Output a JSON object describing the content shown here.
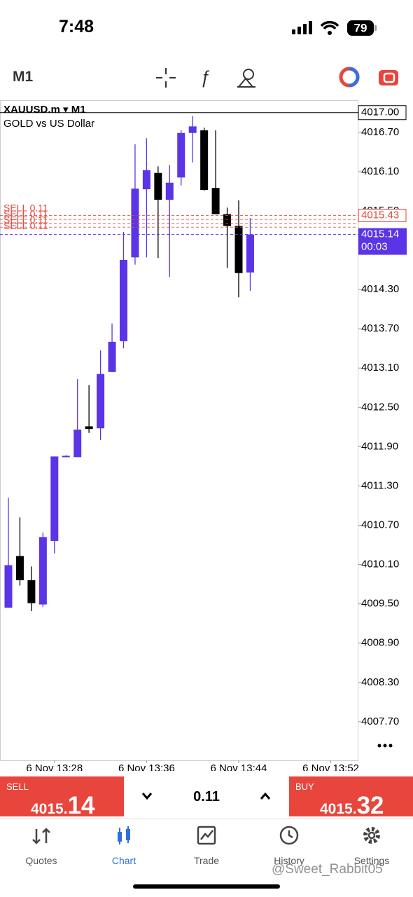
{
  "status_bar": {
    "time": "7:48",
    "battery": "79"
  },
  "toolbar": {
    "timeframe": "M1"
  },
  "chart_data": {
    "type": "candlestick",
    "title": "XAUUSD.m ▾ M1",
    "subtitle": "GOLD vs US Dollar",
    "categories": [
      null,
      null,
      null,
      null,
      "6 Nov 13:28",
      null,
      null,
      null,
      null,
      null,
      null,
      null,
      "6 Nov 13:36",
      null,
      null,
      null,
      null,
      null,
      null,
      null,
      "6 Nov 13:44",
      null,
      null,
      null,
      null,
      null,
      null,
      null,
      "6 Nov 13:52"
    ],
    "open": [
      4009.44,
      4010.23,
      4009.86,
      4009.49,
      4010.46,
      4011.75,
      4011.74,
      4012.21,
      4012.18,
      4013.04,
      4013.51,
      4014.79,
      4015.83,
      4016.08,
      4015.67,
      4016.01,
      4016.69,
      4016.73,
      4015.85,
      4015.45,
      4015.27,
      4014.56,
      null,
      null,
      null,
      null,
      null,
      null,
      null
    ],
    "high": [
      4011.12,
      4010.82,
      4010.07,
      4010.59,
      4011.75,
      4011.77,
      4012.93,
      4012.84,
      4013.37,
      4013.78,
      4015.18,
      4016.52,
      4016.61,
      4016.18,
      4016.2,
      4016.73,
      4016.95,
      4016.77,
      4016.73,
      4015.55,
      4015.66,
      4015.39,
      null,
      null,
      null,
      null,
      null,
      null,
      null
    ],
    "low": [
      4009.44,
      4009.78,
      4009.39,
      4009.45,
      4010.27,
      4011.74,
      4011.74,
      4012.11,
      4012.0,
      4013.04,
      4013.4,
      4014.68,
      4014.79,
      4014.78,
      4014.49,
      4015.89,
      4016.24,
      4015.81,
      4015.45,
      4014.63,
      4014.18,
      4014.28,
      null,
      null,
      null,
      null,
      null,
      null,
      null
    ],
    "close": [
      4010.09,
      4009.86,
      4009.51,
      4010.52,
      4011.75,
      4011.76,
      4012.16,
      4012.17,
      4013.01,
      4013.5,
      4014.75,
      4015.84,
      4016.12,
      4015.67,
      4015.93,
      4016.69,
      4016.79,
      4015.82,
      4015.45,
      4015.27,
      4014.55,
      4015.14,
      null,
      null,
      null,
      null,
      null,
      null,
      null
    ],
    "up_color": "#5b34e8",
    "down_color": "#000000",
    "ylim": [
      4007.11,
      4017.19
    ],
    "yticks": [
      {
        "value": 4016.7,
        "label": "4016.70"
      },
      {
        "value": 4016.1,
        "label": "4016.10"
      },
      {
        "value": 4015.5,
        "label": "4015.50"
      },
      {
        "value": 4014.3,
        "label": "4014.30"
      },
      {
        "value": 4013.7,
        "label": "4013.70"
      },
      {
        "value": 4013.1,
        "label": "4013.10"
      },
      {
        "value": 4012.5,
        "label": "4012.50"
      },
      {
        "value": 4011.9,
        "label": "4011.90"
      },
      {
        "value": 4011.3,
        "label": "4011.30"
      },
      {
        "value": 4010.7,
        "label": "4010.70"
      },
      {
        "value": 4010.1,
        "label": "4010.10"
      },
      {
        "value": 4009.5,
        "label": "4009.50"
      },
      {
        "value": 4008.9,
        "label": "4008.90"
      },
      {
        "value": 4008.3,
        "label": "4008.30"
      },
      {
        "value": 4007.7,
        "label": "4007.70"
      }
    ],
    "high_line": {
      "value": 4017,
      "label": "4017.00"
    },
    "orders": [
      {
        "text": "SELL 0.11",
        "price": 4015.43
      },
      {
        "text": "SELL 0.11",
        "price": 4015.37
      },
      {
        "text": "SELL 0.11",
        "price": 4015.31
      },
      {
        "text": "SELL 0.11",
        "price": 4015.25
      }
    ],
    "order_color": "#e8453c",
    "current_price": 4015.14,
    "countdown": "00:03"
  },
  "trade_bar": {
    "sell_label": "SELL",
    "sell_big": "4015.",
    "sell_pips": "14",
    "volume": "0.11",
    "buy_label": "BUY",
    "buy_big": "4015.",
    "buy_pips": "32"
  },
  "tabs": [
    "Quotes",
    "Chart",
    "Trade",
    "History",
    "Settings"
  ],
  "watermark": "@Sweet_Rabbit05"
}
